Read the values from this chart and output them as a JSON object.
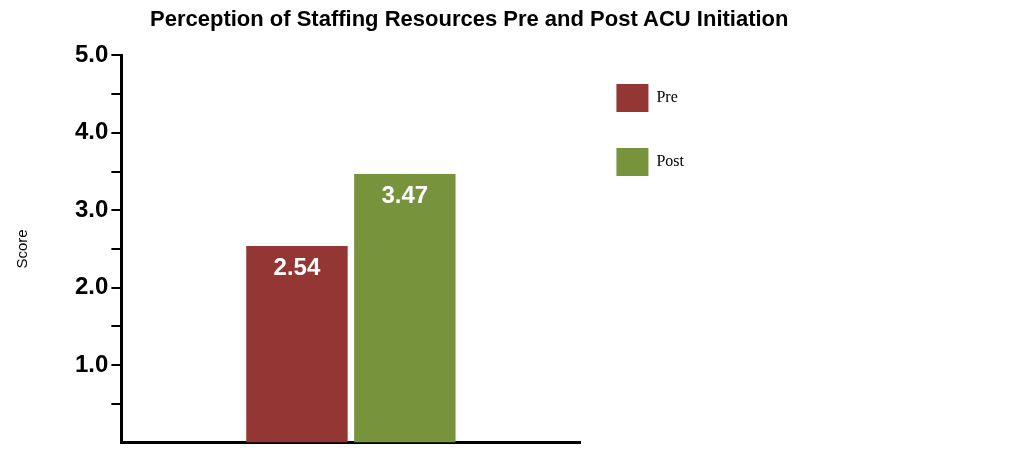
{
  "chart_data": {
    "type": "bar",
    "title": "Perception of Staffing Resources Pre and Post ACU Initiation",
    "ylabel": "Score",
    "categories": [
      null
    ],
    "series": [
      {
        "name": "Pre",
        "color": "#943634",
        "values": [
          2.54
        ]
      },
      {
        "name": "Post",
        "color": "#77933c",
        "values": [
          3.47
        ]
      }
    ],
    "ylim": [
      0,
      5
    ],
    "yticks": [
      {
        "value": 0.5,
        "label": null
      },
      {
        "value": 1,
        "label": "1.0"
      },
      {
        "value": 1.5,
        "label": null
      },
      {
        "value": 2,
        "label": "2.0"
      },
      {
        "value": 2.5,
        "label": null
      },
      {
        "value": 3,
        "label": "3.0"
      },
      {
        "value": 3.5,
        "label": null
      },
      {
        "value": 4,
        "label": "4.0"
      },
      {
        "value": 4.5,
        "label": null
      },
      {
        "value": 5,
        "label": "5.0"
      }
    ],
    "grid": false,
    "legend": "right",
    "data_labels": true
  }
}
